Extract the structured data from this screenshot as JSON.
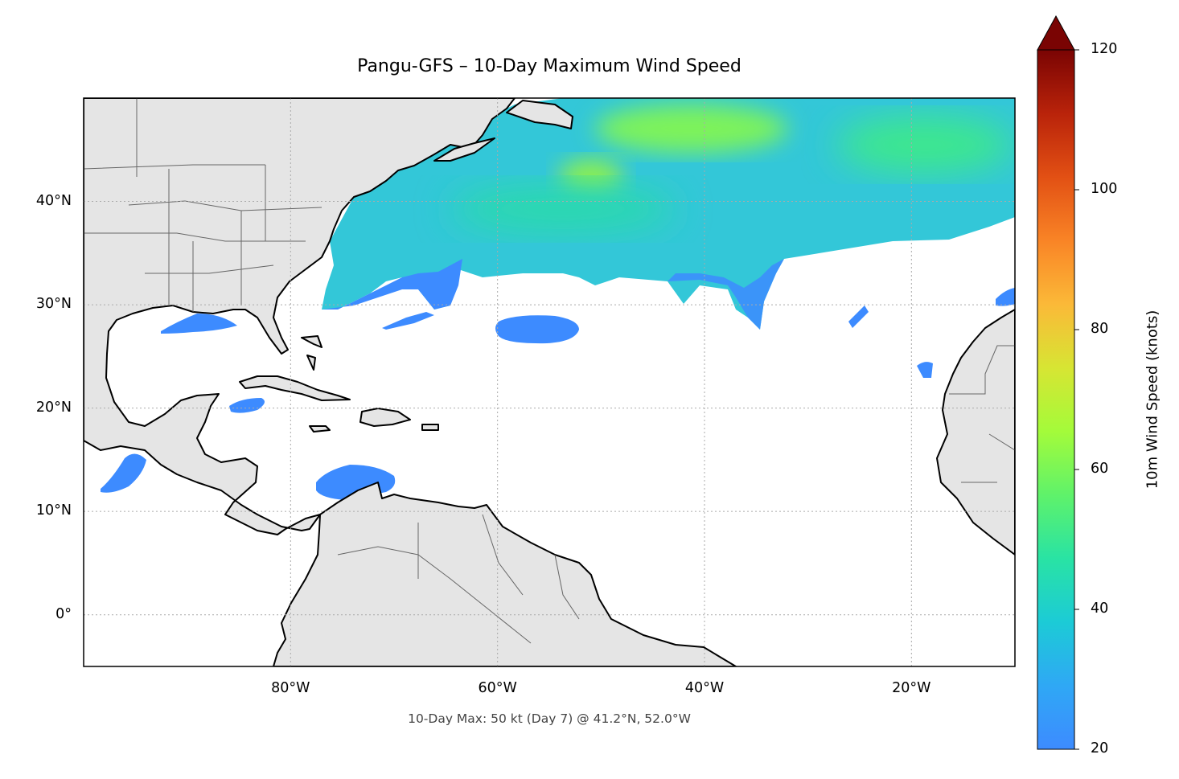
{
  "map": {
    "title": "Pangu-GFS – 10-Day Maximum Wind Speed",
    "footnote": "10-Day Max: 50 kt (Day 7) @ 41.2°N, 52.0°W",
    "extent": {
      "lon_min": -100,
      "lon_max": -10,
      "lat_min": -5,
      "lat_max": 50
    },
    "lat_ticks": [
      "40°N",
      "30°N",
      "20°N",
      "10°N",
      "0°"
    ],
    "lat_values": [
      40,
      30,
      20,
      10,
      0
    ],
    "lon_ticks": [
      "80°W",
      "60°W",
      "40°W",
      "20°W"
    ],
    "lon_values": [
      -80,
      -60,
      -40,
      -20
    ],
    "gridlines": true,
    "land_color": "#e5e5e5",
    "coast_color": "#000000",
    "border_color": "#666666"
  },
  "colorbar": {
    "label": "10m Wind Speed (knots)",
    "min": 20,
    "max": 120,
    "ticks": [
      "20",
      "40",
      "60",
      "80",
      "100",
      "120"
    ],
    "tick_values": [
      20,
      40,
      60,
      80,
      100,
      120
    ],
    "extend": "max",
    "colormap": "turbo",
    "colors": [
      "#3d8bff",
      "#2fa8f5",
      "#1ccbd6",
      "#29e3a4",
      "#5ff26a",
      "#a4fb3a",
      "#d7e533",
      "#fbb938",
      "#f98426",
      "#e25014",
      "#b9230a",
      "#7a0403"
    ]
  },
  "chart_data": {
    "type": "heatmap",
    "variable": "10-Day Maximum Wind Speed",
    "units": "knots",
    "max_value": 50,
    "max_day": 7,
    "max_location": {
      "lat": 41.2,
      "lon": -52.0
    },
    "regions": [
      {
        "lat": 46,
        "lon": -40,
        "value": 48
      },
      {
        "lat": 41.2,
        "lon": -52.0,
        "value": 50
      },
      {
        "lat": 44,
        "lon": -30,
        "value": 38
      },
      {
        "lat": 39,
        "lon": -55,
        "value": 33
      },
      {
        "lat": 36,
        "lon": -65,
        "value": 26
      },
      {
        "lat": 28.5,
        "lon": -56,
        "value": 22
      },
      {
        "lat": 13,
        "lon": -74,
        "value": 22
      },
      {
        "lat": 14,
        "lon": -96,
        "value": 23
      },
      {
        "lat": 29,
        "lon": -87,
        "value": 21
      }
    ]
  }
}
